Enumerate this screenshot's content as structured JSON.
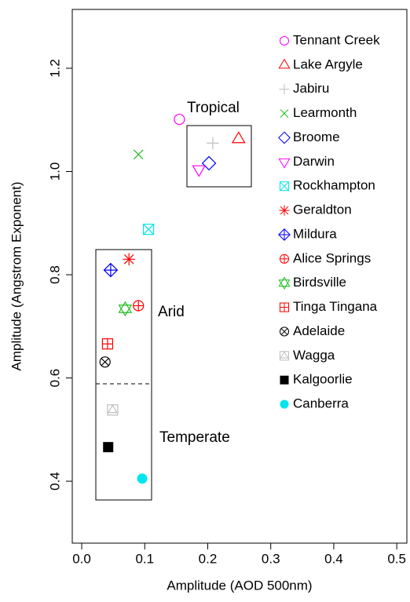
{
  "chart_data": {
    "type": "scatter",
    "x_label": "Amplitude (AOD 500nm)",
    "y_label": "Amplitude (Angstrom Exponent)",
    "xlim": [
      -0.015,
      0.516
    ],
    "ylim": [
      0.28,
      1.314
    ],
    "xticks": [
      {
        "value": 0,
        "label": "0.0"
      },
      0.1,
      0.2,
      0.3,
      0.4,
      0.5
    ],
    "yticks": [
      {
        "value": 0.4,
        "label": "0.4"
      },
      {
        "value": 0.6,
        "label": "0.6"
      },
      {
        "value": 0.8,
        "label": "0.8"
      },
      {
        "value": 1.0,
        "label": "1.0"
      },
      1.2
    ],
    "annotations": [
      "Tropical",
      "Arid",
      "Temperate"
    ],
    "series": [
      {
        "name": "Tennant Creek",
        "color": "#ff00ff",
        "marker": "circle",
        "x": [
          0.155
        ],
        "values": [
          1.101
        ]
      },
      {
        "name": "Lake Argyle",
        "color": "#ff0000",
        "marker": "triangle",
        "x": [
          0.249
        ],
        "values": [
          1.063
        ]
      },
      {
        "name": "Jabiru",
        "color": "#bebebe",
        "marker": "plus",
        "x": [
          0.208
        ],
        "values": [
          1.055
        ]
      },
      {
        "name": "Learmonth",
        "color": "#22bb22",
        "marker": "cross",
        "x": [
          0.09
        ],
        "values": [
          1.033
        ]
      },
      {
        "name": "Broome",
        "color": "#0000ff",
        "marker": "diamond",
        "x": [
          0.202
        ],
        "values": [
          1.016
        ]
      },
      {
        "name": "Darwin",
        "color": "#ff00ff",
        "marker": "triangle-down",
        "x": [
          0.186
        ],
        "values": [
          1.004
        ]
      },
      {
        "name": "Rockhampton",
        "color": "#00e5ee",
        "marker": "square-cross",
        "x": [
          0.106
        ],
        "values": [
          0.888
        ]
      },
      {
        "name": "Geraldton",
        "color": "#ff0000",
        "marker": "asterisk",
        "x": [
          0.075
        ],
        "values": [
          0.83
        ]
      },
      {
        "name": "Mildura",
        "color": "#0000ff",
        "marker": "diamond-plus",
        "x": [
          0.046
        ],
        "values": [
          0.809
        ]
      },
      {
        "name": "Alice Springs",
        "color": "#ff0000",
        "marker": "circle-plus",
        "x": [
          0.09
        ],
        "values": [
          0.74
        ]
      },
      {
        "name": "Birdsville",
        "color": "#22bb22",
        "marker": "star",
        "x": [
          0.069
        ],
        "values": [
          0.734
        ]
      },
      {
        "name": "Tinga Tingana",
        "color": "#ff0000",
        "marker": "square-plus",
        "x": [
          0.041
        ],
        "values": [
          0.666
        ]
      },
      {
        "name": "Adelaide",
        "color": "#000000",
        "marker": "circle-cross",
        "x": [
          0.037
        ],
        "values": [
          0.631
        ]
      },
      {
        "name": "Wagga",
        "color": "#bebebe",
        "marker": "square-triangle",
        "x": [
          0.049
        ],
        "values": [
          0.538
        ]
      },
      {
        "name": "Kalgoorlie",
        "color": "#000000",
        "marker": "filled-square",
        "x": [
          0.042
        ],
        "values": [
          0.466
        ]
      },
      {
        "name": "Canberra",
        "color": "#00e5ee",
        "marker": "filled-circle",
        "x": [
          0.096
        ],
        "values": [
          0.405
        ]
      }
    ]
  }
}
